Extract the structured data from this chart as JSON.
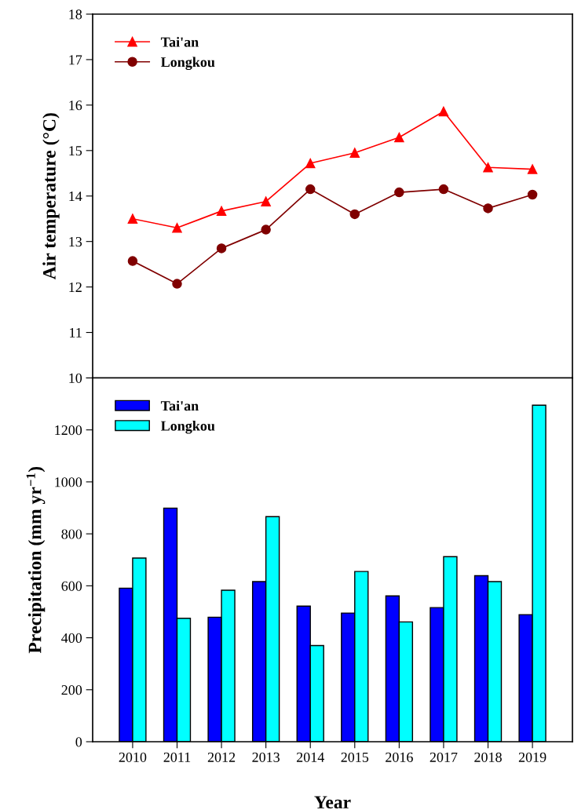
{
  "chart_data": [
    {
      "type": "line",
      "ylabel": "Air temperature (°C)",
      "categories": [
        "2010",
        "2011",
        "2012",
        "2013",
        "2014",
        "2015",
        "2016",
        "2017",
        "2018",
        "2019"
      ],
      "series": [
        {
          "name": "Tai'an",
          "color": "#ff0000",
          "marker": "triangle",
          "values": [
            13.5,
            13.3,
            13.67,
            13.88,
            14.72,
            14.95,
            15.29,
            15.86,
            14.63,
            14.59
          ]
        },
        {
          "name": "Longkou",
          "color": "#800000",
          "marker": "circle",
          "values": [
            12.57,
            12.07,
            12.85,
            13.26,
            14.15,
            13.6,
            14.08,
            14.15,
            13.73,
            14.03
          ]
        }
      ],
      "ylim": [
        10,
        18
      ],
      "yticks": [
        10,
        11,
        12,
        13,
        14,
        15,
        16,
        17,
        18
      ],
      "tick_labels": "y",
      "legend": "top left",
      "grid": false
    },
    {
      "type": "bar",
      "xlabel": "Year",
      "ylabel": "Precipitation (mm yr$^{−1}$)",
      "categories": [
        "2010",
        "2011",
        "2012",
        "2013",
        "2014",
        "2015",
        "2016",
        "2017",
        "2018",
        "2019"
      ],
      "series": [
        {
          "name": "Tai'an",
          "color": "#0000ff",
          "values": [
            591,
            899,
            479,
            616,
            522,
            495,
            561,
            516,
            639,
            489
          ]
        },
        {
          "name": "Longkou",
          "color": "#00ffff",
          "values": [
            707,
            475,
            583,
            866,
            370,
            655,
            461,
            712,
            616,
            1295
          ]
        }
      ],
      "ylim": [
        0,
        1400
      ],
      "yticks": [
        0,
        200,
        400,
        600,
        800,
        1000,
        1200,
        {
          "value": 1400,
          "label": null
        }
      ],
      "legend": "top left",
      "grid": false
    }
  ]
}
